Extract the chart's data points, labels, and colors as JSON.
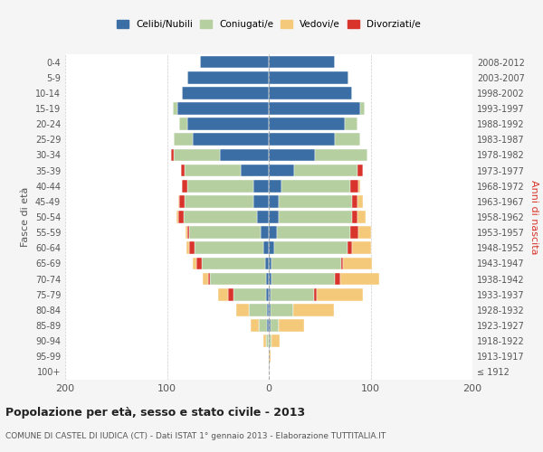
{
  "age_groups": [
    "100+",
    "95-99",
    "90-94",
    "85-89",
    "80-84",
    "75-79",
    "70-74",
    "65-69",
    "60-64",
    "55-59",
    "50-54",
    "45-49",
    "40-44",
    "35-39",
    "30-34",
    "25-29",
    "20-24",
    "15-19",
    "10-14",
    "5-9",
    "0-4"
  ],
  "birth_years": [
    "≤ 1912",
    "1913-1917",
    "1918-1922",
    "1923-1927",
    "1928-1932",
    "1933-1937",
    "1938-1942",
    "1943-1947",
    "1948-1952",
    "1953-1957",
    "1958-1962",
    "1963-1967",
    "1968-1972",
    "1973-1977",
    "1978-1982",
    "1983-1987",
    "1988-1992",
    "1993-1997",
    "1998-2002",
    "2003-2007",
    "2008-2012"
  ],
  "male": {
    "celibi": [
      0,
      0,
      0,
      2,
      2,
      3,
      3,
      4,
      5,
      8,
      12,
      15,
      15,
      28,
      48,
      75,
      80,
      90,
      85,
      80,
      68
    ],
    "coniugati": [
      0,
      0,
      3,
      8,
      18,
      32,
      55,
      62,
      68,
      70,
      72,
      68,
      65,
      55,
      45,
      18,
      8,
      4,
      0,
      0,
      0
    ],
    "vedovi": [
      0,
      0,
      2,
      8,
      12,
      10,
      5,
      4,
      3,
      2,
      2,
      1,
      0,
      0,
      0,
      0,
      0,
      0,
      0,
      0,
      0
    ],
    "divorziati": [
      0,
      0,
      0,
      0,
      0,
      5,
      2,
      5,
      5,
      2,
      5,
      5,
      5,
      3,
      3,
      0,
      0,
      0,
      0,
      0,
      0
    ]
  },
  "female": {
    "nubili": [
      0,
      0,
      0,
      2,
      2,
      2,
      3,
      3,
      5,
      8,
      10,
      10,
      12,
      25,
      45,
      65,
      75,
      90,
      82,
      78,
      65
    ],
    "coniugate": [
      0,
      0,
      3,
      8,
      22,
      42,
      62,
      68,
      72,
      72,
      72,
      72,
      68,
      62,
      52,
      25,
      12,
      4,
      0,
      0,
      0
    ],
    "vedove": [
      0,
      2,
      8,
      25,
      40,
      45,
      38,
      28,
      18,
      12,
      8,
      5,
      2,
      0,
      0,
      0,
      0,
      0,
      0,
      0,
      0
    ],
    "divorziate": [
      0,
      0,
      0,
      0,
      0,
      3,
      5,
      2,
      5,
      8,
      5,
      5,
      8,
      5,
      0,
      0,
      0,
      0,
      0,
      0,
      0
    ]
  },
  "colors": {
    "celibi": "#3a6ea5",
    "coniugati": "#b5cfa0",
    "vedovi": "#f5c97a",
    "divorziati": "#d9342b"
  },
  "xlim": 200,
  "title": "Popolazione per età, sesso e stato civile - 2013",
  "subtitle": "COMUNE DI CASTEL DI IUDICA (CT) - Dati ISTAT 1° gennaio 2013 - Elaborazione TUTTITALIA.IT",
  "ylabel_left": "Fasce di età",
  "ylabel_right": "Anni di nascita",
  "legend_labels": [
    "Celibi/Nubili",
    "Coniugati/e",
    "Vedovi/e",
    "Divorziati/e"
  ],
  "bg_color": "#f5f5f5",
  "plot_bg_color": "#ffffff",
  "grid_color": "#cccccc"
}
